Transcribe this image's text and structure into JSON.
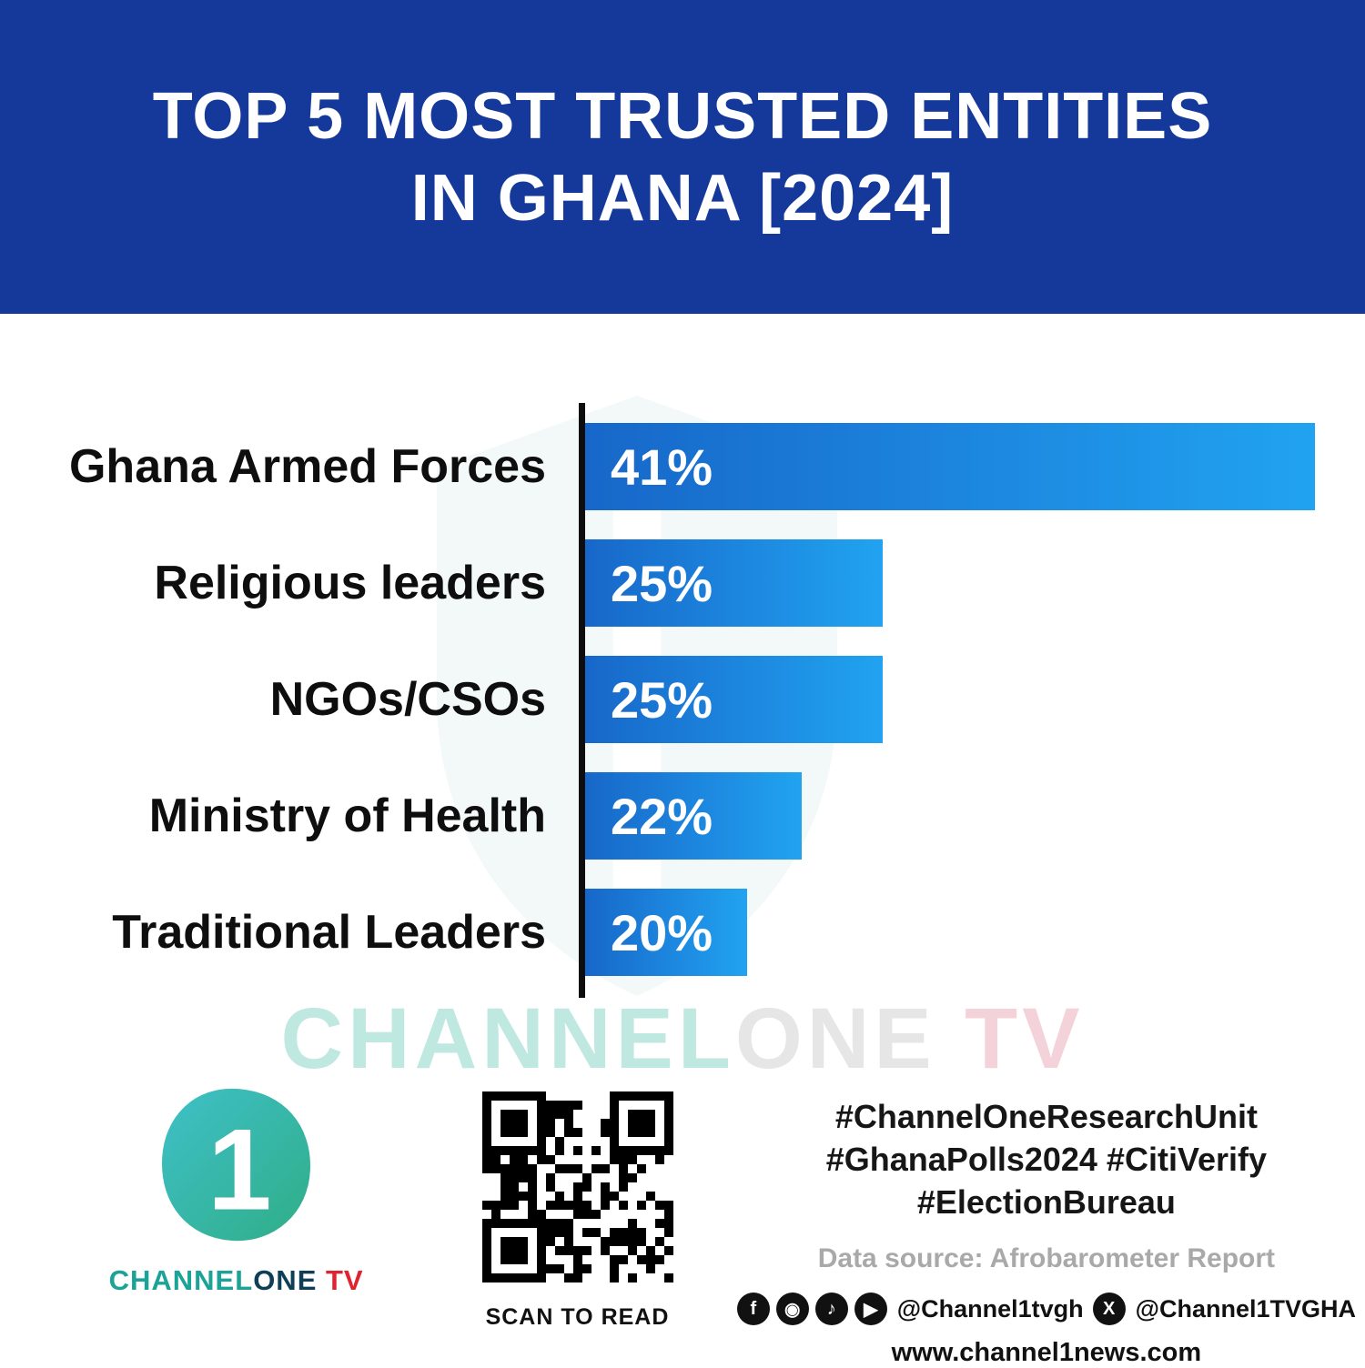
{
  "banner": {
    "title_line1": "TOP 5 MOST TRUSTED ENTITIES",
    "title_line2": "IN GHANA [2024]"
  },
  "chart_data": {
    "type": "bar",
    "orientation": "horizontal",
    "title": "Top 5 Most Trusted Entities in Ghana [2024]",
    "categories": [
      "Ghana Armed Forces",
      "Religious leaders",
      "NGOs/CSOs",
      "Ministry of Health",
      "Traditional Leaders"
    ],
    "values": [
      41,
      25,
      25,
      22,
      20
    ],
    "value_labels": [
      "41%",
      "25%",
      "25%",
      "22%",
      "20%"
    ],
    "unit": "percent",
    "xlim": [
      14,
      41
    ],
    "grid": false,
    "legend": false,
    "bar_gradient": [
      "#1767c9",
      "#21a3f1"
    ],
    "axis_color": "#0d0d0d"
  },
  "watermark": {
    "part1": "CHANNEL",
    "part2": "ONE",
    "part3": " TV"
  },
  "footer": {
    "logo": {
      "mark": "1",
      "channel": "CHANNEL",
      "one": "ONE",
      "tv": " TV"
    },
    "qr_caption": "SCAN TO READ",
    "hashtags": [
      "#ChannelOneResearchUnit",
      "#GhanaPolls2024 #CitiVerify",
      "#ElectionBureau"
    ],
    "source": "Data source: Afrobarometer Report",
    "social": {
      "icons": [
        {
          "name": "facebook-icon",
          "glyph": "f"
        },
        {
          "name": "instagram-icon",
          "glyph": "◉"
        },
        {
          "name": "tiktok-icon",
          "glyph": "♪"
        },
        {
          "name": "youtube-icon",
          "glyph": "▶"
        }
      ],
      "handle1": "@Channel1tvgh",
      "x_icon": {
        "name": "x-icon",
        "glyph": "X"
      },
      "handle2": "@Channel1TVGHA"
    },
    "website": "www.channel1news.com"
  },
  "colors": {
    "banner_blue": "#15399b",
    "bar_start": "#1767c9",
    "bar_end": "#21a3f1",
    "logo_teal": "#1aa396",
    "logo_tv_red": "#e02330",
    "source_gray": "#a9a9a9"
  }
}
